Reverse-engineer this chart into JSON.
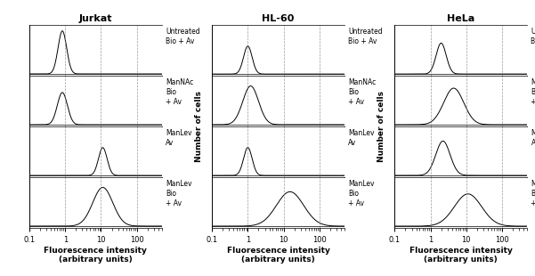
{
  "panels": [
    "Jurkat",
    "HL-60",
    "HeLa"
  ],
  "labels": [
    "Untreated\nBio + Av",
    "ManNAc\nBio\n+ Av",
    "ManLev\nAv",
    "ManLev\nBio\n+ Av"
  ],
  "xlabel": "Fluorescence intensity\n(arbitrary units)",
  "ylabel": "Number of cells",
  "background_color": "#ffffff",
  "panel_peaks_log10": {
    "Jurkat": [
      -0.08,
      -0.08,
      1.05,
      1.05
    ],
    "HL-60": [
      0.0,
      0.08,
      0.0,
      1.18
    ],
    "HeLa": [
      0.3,
      0.65,
      0.35,
      1.05
    ]
  },
  "panel_widths": {
    "Jurkat": [
      0.12,
      0.14,
      0.12,
      0.28
    ],
    "HL-60": [
      0.12,
      0.22,
      0.12,
      0.38
    ],
    "HeLa": [
      0.14,
      0.28,
      0.2,
      0.38
    ]
  },
  "panel_heights": {
    "Jurkat": [
      1.0,
      0.75,
      0.65,
      0.9
    ],
    "HL-60": [
      0.65,
      0.9,
      0.65,
      0.8
    ],
    "HeLa": [
      0.72,
      0.85,
      0.8,
      0.75
    ]
  },
  "has_ylabel": [
    false,
    true,
    true
  ],
  "vlines_x": [
    1,
    10,
    100
  ],
  "xlim": [
    0.1,
    500
  ],
  "xticks": [
    0.1,
    1,
    10,
    100
  ],
  "xtick_labels": [
    "0.1",
    "1",
    "10",
    "100"
  ]
}
